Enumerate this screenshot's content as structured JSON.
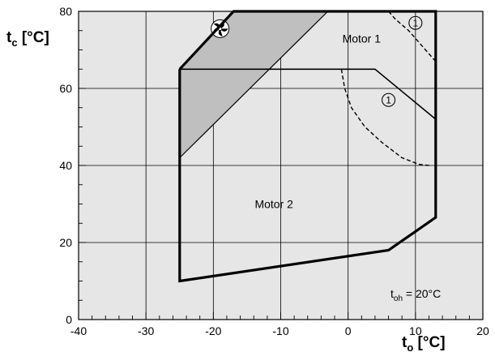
{
  "chart_data": {
    "type": "area",
    "xlim": [
      -40,
      20
    ],
    "ylim": [
      0,
      80
    ],
    "x_ticks": [
      -40,
      -30,
      -20,
      -10,
      0,
      10,
      20
    ],
    "x_tick_labels": [
      "-40",
      "-30",
      "-20",
      "-10",
      "0",
      "10",
      "20"
    ],
    "y_ticks": [
      0,
      20,
      40,
      60,
      80
    ],
    "y_tick_labels": [
      "0",
      "20",
      "40",
      "60",
      "80"
    ],
    "grid": true,
    "xlabel": {
      "main": "t",
      "sub": "o",
      "unit": " [°C]"
    },
    "ylabel": {
      "main": "t",
      "sub": "c",
      "unit": " [°C]"
    },
    "series": [
      {
        "name": "Motor 1",
        "style": "thick-outline",
        "points": [
          [
            -25,
            65
          ],
          [
            -17,
            80
          ],
          [
            13,
            80
          ],
          [
            13,
            26.5
          ],
          [
            6,
            18
          ],
          [
            -25,
            10
          ]
        ]
      },
      {
        "name": "Motor 2",
        "style": "thin-outline",
        "points": [
          [
            -25,
            65
          ],
          [
            4,
            65
          ],
          [
            13,
            52
          ]
        ]
      }
    ],
    "shaded_region": {
      "color": "#bfbfbf",
      "icon": "fan-icon",
      "points": [
        [
          -17,
          80
        ],
        [
          -3,
          80
        ],
        [
          -25,
          42
        ],
        [
          -25,
          65
        ]
      ]
    },
    "dashed_curves": [
      {
        "points": [
          [
            6,
            80
          ],
          [
            7,
            78
          ],
          [
            9,
            75
          ],
          [
            11,
            71
          ],
          [
            13,
            67
          ]
        ]
      },
      {
        "points": [
          [
            -1,
            65
          ],
          [
            -0.5,
            60
          ],
          [
            0.5,
            55
          ],
          [
            2.5,
            50
          ],
          [
            5,
            46
          ],
          [
            8,
            42
          ],
          [
            10.5,
            40.3
          ],
          [
            12,
            40
          ]
        ]
      }
    ],
    "annotations": [
      {
        "text": "Motor 1",
        "x": 2,
        "y": 73
      },
      {
        "text": "Motor 2",
        "x": -11,
        "y": 30
      },
      {
        "text": "1",
        "circled": true,
        "x": 10,
        "y": 77
      },
      {
        "text": "1",
        "circled": true,
        "x": 6,
        "y": 57
      }
    ],
    "note": {
      "main": "t",
      "sub": "oh",
      "rest": " = 20°C"
    },
    "colors": {
      "background": "#e6e6e6",
      "grid": "#000000",
      "shaded": "#bfbfbf",
      "outline": "#000000"
    }
  }
}
